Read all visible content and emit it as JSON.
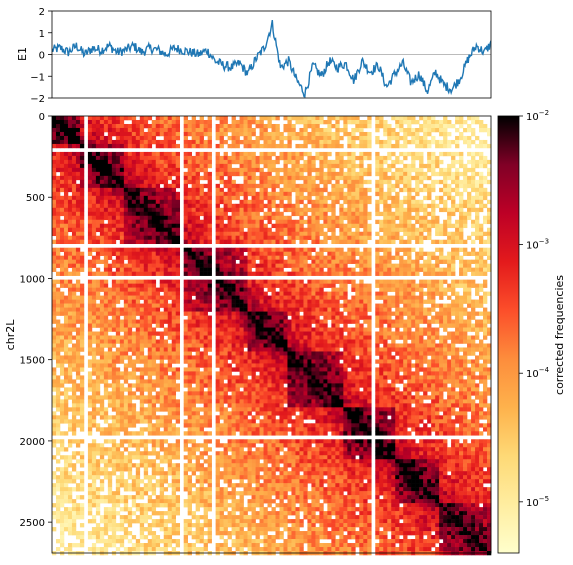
{
  "chart_data": [
    {
      "type": "line",
      "ylabel": "E1",
      "ylim": [
        -2,
        2
      ],
      "yticks": [
        "2",
        "1",
        "0",
        "−1",
        "−2"
      ],
      "zero_line": true,
      "series": [
        {
          "color": "#1f77b4",
          "x": [
            0,
            50,
            100,
            150,
            200,
            250,
            300,
            350,
            400,
            450,
            500,
            550,
            600,
            650,
            700,
            750,
            800,
            850,
            900,
            950,
            1000,
            1050,
            1100,
            1150,
            1200,
            1250,
            1300,
            1350,
            1400,
            1450,
            1500,
            1550,
            1600,
            1650,
            1700,
            1750,
            1800,
            1850,
            1900,
            1950,
            2000,
            2050,
            2100,
            2150,
            2200,
            2250,
            2300,
            2350,
            2400,
            2450,
            2500,
            2550,
            2600,
            2650,
            2700
          ],
          "values": [
            0.2,
            0.3,
            0.1,
            0.4,
            0.0,
            0.3,
            0.2,
            0.4,
            0.1,
            0.2,
            0.4,
            0.1,
            0.3,
            0.2,
            0.0,
            0.3,
            0.2,
            0.1,
            0.0,
            0.2,
            -0.3,
            -0.5,
            -0.6,
            -0.4,
            -0.9,
            -0.2,
            0.3,
            1.4,
            -0.6,
            -0.3,
            -1.2,
            -1.8,
            -0.5,
            -1.0,
            -0.3,
            -0.6,
            -0.4,
            -1.2,
            -0.3,
            -0.8,
            -0.5,
            -1.5,
            -0.9,
            -0.4,
            -1.3,
            -0.9,
            -1.7,
            -0.8,
            -1.4,
            -1.6,
            -1.1,
            -0.2,
            0.4,
            0.1,
            0.6
          ]
        }
      ]
    },
    {
      "type": "heatmap",
      "ylabel": "chr2L",
      "ylim": [
        2690,
        0
      ],
      "xlim": [
        0,
        2690
      ],
      "yticks": [
        "0",
        "500",
        "1000",
        "1500",
        "2000",
        "2500"
      ],
      "description_scale": "log",
      "domains": [
        {
          "start": 0,
          "end": 180,
          "level": 0.95
        },
        {
          "start": 180,
          "end": 450,
          "level": 0.85
        },
        {
          "start": 450,
          "end": 800,
          "level": 0.8
        },
        {
          "start": 800,
          "end": 1200,
          "level": 0.75
        },
        {
          "start": 1200,
          "end": 1450,
          "level": 0.8
        },
        {
          "start": 1450,
          "end": 1780,
          "level": 0.85
        },
        {
          "start": 1780,
          "end": 2100,
          "level": 0.95
        },
        {
          "start": 2100,
          "end": 2380,
          "level": 0.9
        },
        {
          "start": 2380,
          "end": 2690,
          "level": 0.75
        }
      ],
      "white_gap_bins": [
        210,
        790,
        980,
        1970
      ],
      "colorbar": {
        "label": "corrected frequencies",
        "scale": "log",
        "range": [
          4e-06,
          0.01
        ],
        "ticks": [
          {
            "base": "10",
            "exp": "−2",
            "value": 0.01
          },
          {
            "base": "10",
            "exp": "−3",
            "value": 0.001
          },
          {
            "base": "10",
            "exp": "−4",
            "value": 0.0001
          },
          {
            "base": "10",
            "exp": "−5",
            "value": 1e-05
          }
        ],
        "colormap": [
          "#ffffcc",
          "#ffeda0",
          "#fed976",
          "#feb24c",
          "#fd8d3c",
          "#fc4e2a",
          "#e31a1c",
          "#bd0026",
          "#800026",
          "#000000"
        ]
      }
    }
  ]
}
